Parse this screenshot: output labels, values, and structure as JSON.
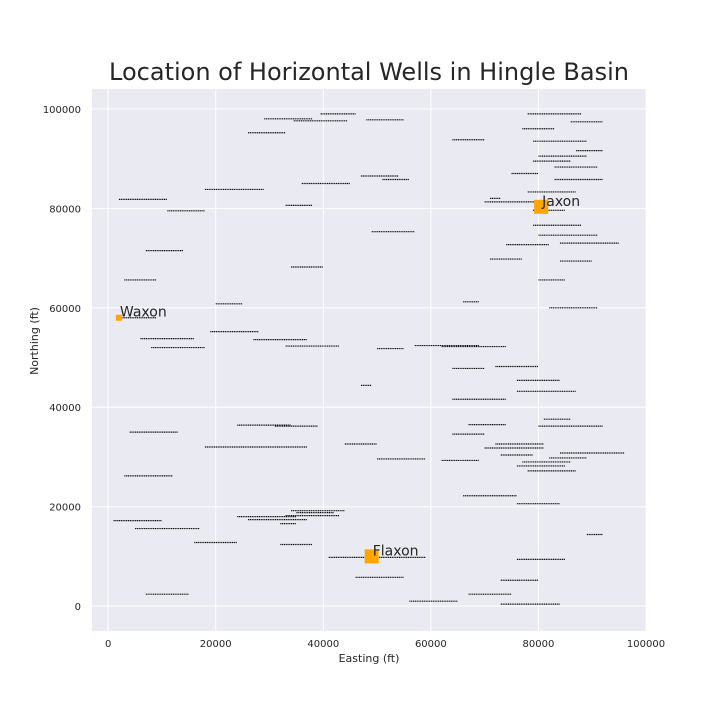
{
  "chart_data": {
    "type": "scatter",
    "title": "Location of Horizontal Wells in Hingle Basin",
    "xlabel": "Easting (ft)",
    "ylabel": "Northing (ft)",
    "xlim": [
      -3000,
      100000
    ],
    "ylim": [
      -5000,
      104000
    ],
    "xticks": [
      0,
      20000,
      40000,
      60000,
      80000,
      100000
    ],
    "yticks": [
      0,
      20000,
      40000,
      60000,
      80000,
      100000
    ],
    "grid": true,
    "colors": {
      "background": "#EAEAF2",
      "grid": "#FFFFFF",
      "well": "#111111",
      "site": "#FFA500"
    },
    "wells": [
      [
        39500,
        46000,
        99000
      ],
      [
        48000,
        55000,
        97800
      ],
      [
        29000,
        38000,
        98000
      ],
      [
        34500,
        44500,
        97600
      ],
      [
        26000,
        33000,
        95200
      ],
      [
        78000,
        88000,
        99000
      ],
      [
        86000,
        92000,
        97400
      ],
      [
        77000,
        83000,
        96000
      ],
      [
        64000,
        70000,
        93800
      ],
      [
        79000,
        89000,
        93500
      ],
      [
        87000,
        92000,
        91600
      ],
      [
        80000,
        89000,
        90500
      ],
      [
        79000,
        86000,
        89500
      ],
      [
        83000,
        91000,
        88300
      ],
      [
        75000,
        80000,
        87000
      ],
      [
        47000,
        54000,
        86500
      ],
      [
        51000,
        56000,
        85800
      ],
      [
        36000,
        45000,
        85000
      ],
      [
        83000,
        92000,
        85800
      ],
      [
        18000,
        29000,
        83800
      ],
      [
        78000,
        87000,
        83300
      ],
      [
        2000,
        11000,
        81800
      ],
      [
        70000,
        80000,
        81300
      ],
      [
        71000,
        73000,
        82000
      ],
      [
        33000,
        38000,
        80600
      ],
      [
        11000,
        18000,
        79500
      ],
      [
        79000,
        85000,
        79600
      ],
      [
        79000,
        88000,
        76600
      ],
      [
        49000,
        57000,
        75300
      ],
      [
        80000,
        91000,
        74600
      ],
      [
        74000,
        82000,
        72700
      ],
      [
        84000,
        95000,
        73000
      ],
      [
        7000,
        14000,
        71500
      ],
      [
        71000,
        77000,
        69800
      ],
      [
        84000,
        90000,
        69400
      ],
      [
        34000,
        40000,
        68200
      ],
      [
        3000,
        9000,
        65600
      ],
      [
        80000,
        85000,
        65600
      ],
      [
        66000,
        69000,
        61200
      ],
      [
        20000,
        25000,
        60800
      ],
      [
        82000,
        91000,
        60000
      ],
      [
        2000,
        9000,
        58000
      ],
      [
        19000,
        28000,
        55200
      ],
      [
        6000,
        16000,
        53800
      ],
      [
        27000,
        37000,
        53600
      ],
      [
        8000,
        18000,
        52000
      ],
      [
        33000,
        43000,
        52300
      ],
      [
        50000,
        55000,
        51800
      ],
      [
        57000,
        69000,
        52400
      ],
      [
        62000,
        74000,
        52200
      ],
      [
        72000,
        80000,
        48200
      ],
      [
        64000,
        70000,
        47800
      ],
      [
        76000,
        84000,
        45400
      ],
      [
        47000,
        49000,
        44400
      ],
      [
        76000,
        87000,
        43200
      ],
      [
        64000,
        74000,
        41600
      ],
      [
        81000,
        86000,
        37600
      ],
      [
        24000,
        34000,
        36400
      ],
      [
        31000,
        39000,
        36200
      ],
      [
        67000,
        74000,
        36500
      ],
      [
        80000,
        92000,
        36200
      ],
      [
        4000,
        13000,
        35000
      ],
      [
        64000,
        70000,
        34600
      ],
      [
        44000,
        50000,
        32600
      ],
      [
        72000,
        81000,
        32600
      ],
      [
        18000,
        37000,
        32000
      ],
      [
        70000,
        81000,
        31800
      ],
      [
        84000,
        96000,
        30800
      ],
      [
        73000,
        79000,
        30400
      ],
      [
        82000,
        89000,
        29800
      ],
      [
        50000,
        59000,
        29600
      ],
      [
        62000,
        69000,
        29300
      ],
      [
        77000,
        86000,
        29000
      ],
      [
        76000,
        85000,
        28200
      ],
      [
        78000,
        87000,
        27200
      ],
      [
        3000,
        12000,
        26200
      ],
      [
        66000,
        76000,
        22200
      ],
      [
        76000,
        84000,
        20600
      ],
      [
        34000,
        44000,
        19200
      ],
      [
        35000,
        42000,
        18800
      ],
      [
        24000,
        35000,
        18000
      ],
      [
        33000,
        43000,
        18200
      ],
      [
        26000,
        37000,
        17400
      ],
      [
        1000,
        10000,
        17200
      ],
      [
        32000,
        35000,
        16600
      ],
      [
        5000,
        17000,
        15600
      ],
      [
        89000,
        92000,
        14400
      ],
      [
        16000,
        24000,
        12800
      ],
      [
        32000,
        38000,
        12400
      ],
      [
        41000,
        59000,
        9800
      ],
      [
        76000,
        85000,
        9400
      ],
      [
        46000,
        55000,
        5800
      ],
      [
        73000,
        80000,
        5200
      ],
      [
        7000,
        15000,
        2400
      ],
      [
        67000,
        75000,
        2400
      ],
      [
        56000,
        65000,
        1000
      ],
      [
        73000,
        84000,
        400
      ]
    ],
    "sites": [
      {
        "name": "Jaxon",
        "x": 80500,
        "y": 80300,
        "size": "large"
      },
      {
        "name": "Waxon",
        "x": 2000,
        "y": 58000,
        "size": "small"
      },
      {
        "name": "Flaxon",
        "x": 49000,
        "y": 10000,
        "size": "large"
      }
    ]
  }
}
